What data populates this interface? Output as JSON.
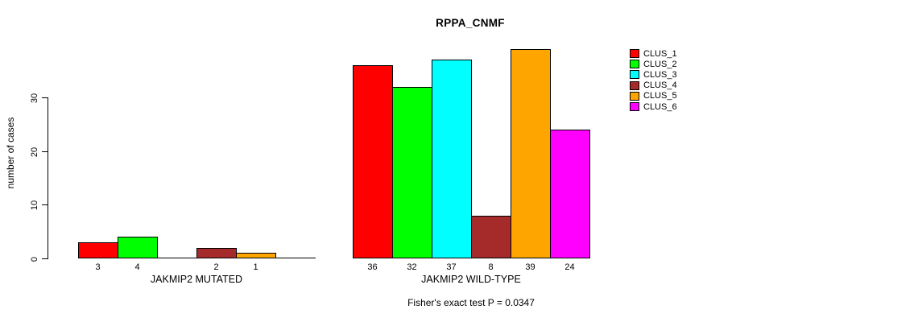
{
  "title": "RPPA_CNMF",
  "footer_note": "Fisher's exact test P = 0.0347",
  "y_axis": {
    "label": "number of cases",
    "ticks": [
      0,
      10,
      20,
      30
    ]
  },
  "legend": {
    "position": "right",
    "items": [
      {
        "label": "CLUS_1",
        "color": "#ff0000"
      },
      {
        "label": "CLUS_2",
        "color": "#00ff00"
      },
      {
        "label": "CLUS_3",
        "color": "#00ffff"
      },
      {
        "label": "CLUS_4",
        "color": "#a52a2a"
      },
      {
        "label": "CLUS_5",
        "color": "#ffa500"
      },
      {
        "label": "CLUS_6",
        "color": "#ff00ff"
      }
    ]
  },
  "chart_data": {
    "type": "bar",
    "title": "RPPA_CNMF",
    "xlabel": "",
    "ylabel": "number of cases",
    "ylim": [
      0,
      39
    ],
    "yticks": [
      0,
      10,
      20,
      30
    ],
    "grid": false,
    "legend_position": "right",
    "series": [
      "CLUS_1",
      "CLUS_2",
      "CLUS_3",
      "CLUS_4",
      "CLUS_5",
      "CLUS_6"
    ],
    "colors": [
      "#ff0000",
      "#00ff00",
      "#00ffff",
      "#a52a2a",
      "#ffa500",
      "#ff00ff"
    ],
    "groups": [
      {
        "label": "JAKMIP2 MUTATED",
        "values": [
          3,
          4,
          0,
          2,
          1,
          0
        ]
      },
      {
        "label": "JAKMIP2 WILD-TYPE",
        "values": [
          36,
          32,
          37,
          8,
          39,
          24
        ]
      }
    ],
    "annotation": "Fisher's exact test P = 0.0347"
  }
}
